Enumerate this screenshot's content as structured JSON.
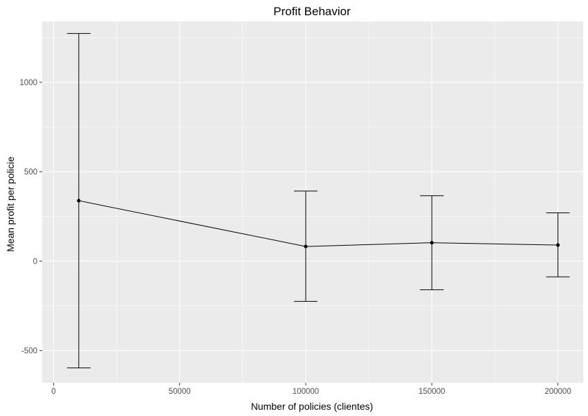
{
  "chart_data": {
    "type": "line",
    "title": "Profit Behavior",
    "xlabel": "Number of policies (clientes)",
    "ylabel": "Mean profit per policie",
    "xlim": [
      -4500,
      210000
    ],
    "ylim": [
      -680,
      1340
    ],
    "x_ticks": [
      0,
      50000,
      100000,
      150000,
      200000
    ],
    "x_tick_labels": [
      "0",
      "50000",
      "100000",
      "150000",
      "200000"
    ],
    "y_ticks": [
      -500,
      0,
      500,
      1000
    ],
    "y_tick_labels": [
      "-500",
      "0",
      "500",
      "1000"
    ],
    "grid": true,
    "legend": "none",
    "series": [
      {
        "x": [
          10000,
          100000,
          150000,
          200000
        ],
        "y": [
          338,
          82,
          103,
          90
        ],
        "error_lower": [
          -597,
          -225,
          -160,
          -88
        ],
        "error_upper": [
          1273,
          392,
          366,
          270
        ]
      }
    ],
    "colors": {
      "panel": "#ebebeb",
      "grid_major": "#ffffff",
      "line": "#000000",
      "tick": "#333333",
      "tick_text": "#4d4d4d"
    }
  }
}
